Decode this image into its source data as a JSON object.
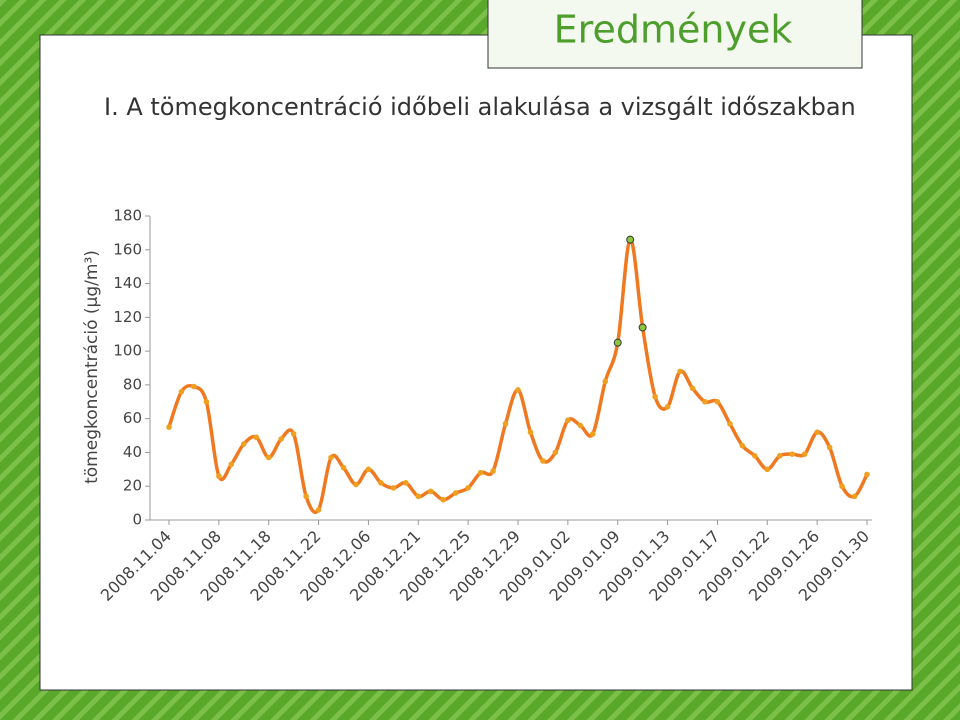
{
  "slide": {
    "title": "Eredmények",
    "subtitle": "I. A tömegkoncentráció időbeli alakulása a vizsgált időszakban"
  },
  "chart_data": {
    "type": "line",
    "y_label": "tömegkoncentráció (μg/m³)",
    "categories": [
      "2008.11.04",
      null,
      null,
      null,
      "2008.11.08",
      null,
      null,
      null,
      "2008.11.18",
      null,
      null,
      null,
      "2008.11.22",
      null,
      null,
      null,
      "2008.12.06",
      null,
      null,
      null,
      "2008.12.21",
      null,
      null,
      null,
      "2008.12.25",
      null,
      null,
      null,
      "2008.12.29",
      null,
      null,
      null,
      "2009.01.02",
      null,
      null,
      null,
      "2009.01.09",
      null,
      null,
      null,
      "2009.01.13",
      null,
      null,
      null,
      "2009.01.17",
      null,
      null,
      null,
      "2009.01.22",
      null,
      null,
      null,
      "2009.01.26",
      null,
      null,
      null,
      "2009.01.30"
    ],
    "series": [
      {
        "color": "#f07820",
        "marker_color": "#f0a020",
        "highlight_marker_color": "#8cc63f",
        "highlighted_points": [
          36,
          37,
          38
        ],
        "values": [
          55,
          76,
          79,
          70,
          26,
          33,
          45,
          49,
          37,
          48,
          51,
          14,
          6,
          37,
          31,
          21,
          30,
          22,
          19,
          22,
          14,
          17,
          12,
          16,
          19,
          28,
          29,
          57,
          77,
          52,
          35,
          40,
          59,
          56,
          51,
          82,
          105,
          166,
          114,
          73,
          67,
          88,
          78,
          70,
          70,
          57,
          44,
          38,
          30,
          38,
          39,
          39,
          52,
          43,
          20,
          14,
          27
        ]
      }
    ],
    "ylim": [
      0,
      180
    ],
    "yticks": [
      0,
      20,
      40,
      60,
      80,
      100,
      120,
      140,
      160,
      180
    ],
    "grid": false,
    "smooth": true
  }
}
